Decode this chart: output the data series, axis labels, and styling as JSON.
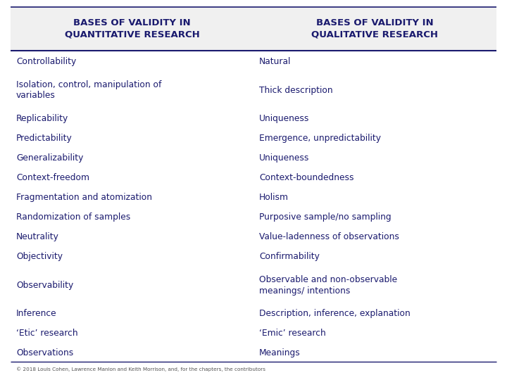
{
  "header_left": "BASES OF VALIDITY IN\nQUANTITATIVE RESEARCH",
  "header_right": "BASES OF VALIDITY IN\nQUALITATIVE RESEARCH",
  "rows": [
    [
      "Controllability",
      "Natural"
    ],
    [
      "Isolation, control, manipulation of\nvariables",
      "Thick description"
    ],
    [
      "Replicability",
      "Uniqueness"
    ],
    [
      "Predictability",
      "Emergence, unpredictability"
    ],
    [
      "Generalizability",
      "Uniqueness"
    ],
    [
      "Context-freedom",
      "Context-boundedness"
    ],
    [
      "Fragmentation and atomization",
      "Holism"
    ],
    [
      "Randomization of samples",
      "Purposive sample/no sampling"
    ],
    [
      "Neutrality",
      "Value-ladenness of observations"
    ],
    [
      "Objectivity",
      "Confirmability"
    ],
    [
      "Observability",
      "Observable and non-observable\nmeanings/ intentions"
    ],
    [
      "Inference",
      "Description, inference, explanation"
    ],
    [
      "‘Etic’ research",
      "‘Emic’ research"
    ],
    [
      "Observations",
      "Meanings"
    ]
  ],
  "footer": "© 2018 Louis Cohen, Lawrence Manion and Keith Morrison, and, for the chapters, the contributors",
  "header_color": "#1a1a6e",
  "text_color": "#1a1a6e",
  "bg_color": "#ffffff",
  "header_bg": "#f0f0f0",
  "col_split": 0.5
}
